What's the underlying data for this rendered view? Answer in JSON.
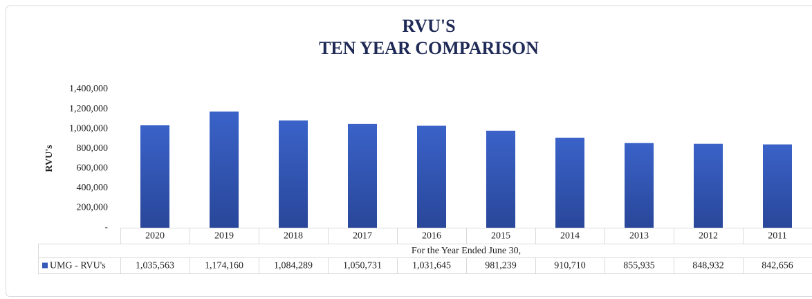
{
  "chart_data": {
    "type": "bar",
    "title": "RVU'S",
    "subtitle": "TEN YEAR COMPARISON",
    "y_axis_label": "RVU's",
    "x_axis_label": "For the Year Ended June 30,",
    "categories": [
      "2020",
      "2019",
      "2018",
      "2017",
      "2016",
      "2015",
      "2014",
      "2013",
      "2012",
      "2011"
    ],
    "series": [
      {
        "name": "UMG - RVU's",
        "color": "#3559b8",
        "values": [
          1035563,
          1174160,
          1084289,
          1050731,
          1031645,
          981239,
          910710,
          855935,
          848932,
          842656
        ],
        "value_labels": [
          "1,035,563",
          "1,174,160",
          "1,084,289",
          "1,050,731",
          "1,031,645",
          "981,239",
          "910,710",
          "855,935",
          "848,932",
          "842,656"
        ]
      }
    ],
    "ylim": [
      0,
      1400000
    ],
    "yticks": [
      {
        "value": 0,
        "label": "-"
      },
      {
        "value": 200000,
        "label": "200,000"
      },
      {
        "value": 400000,
        "label": "400,000"
      },
      {
        "value": 600000,
        "label": "600,000"
      },
      {
        "value": 800000,
        "label": "800,000"
      },
      {
        "value": 1000000,
        "label": "1,000,000"
      },
      {
        "value": 1200000,
        "label": "1,200,000"
      },
      {
        "value": 1400000,
        "label": "1,400,000"
      }
    ],
    "grid": false
  }
}
